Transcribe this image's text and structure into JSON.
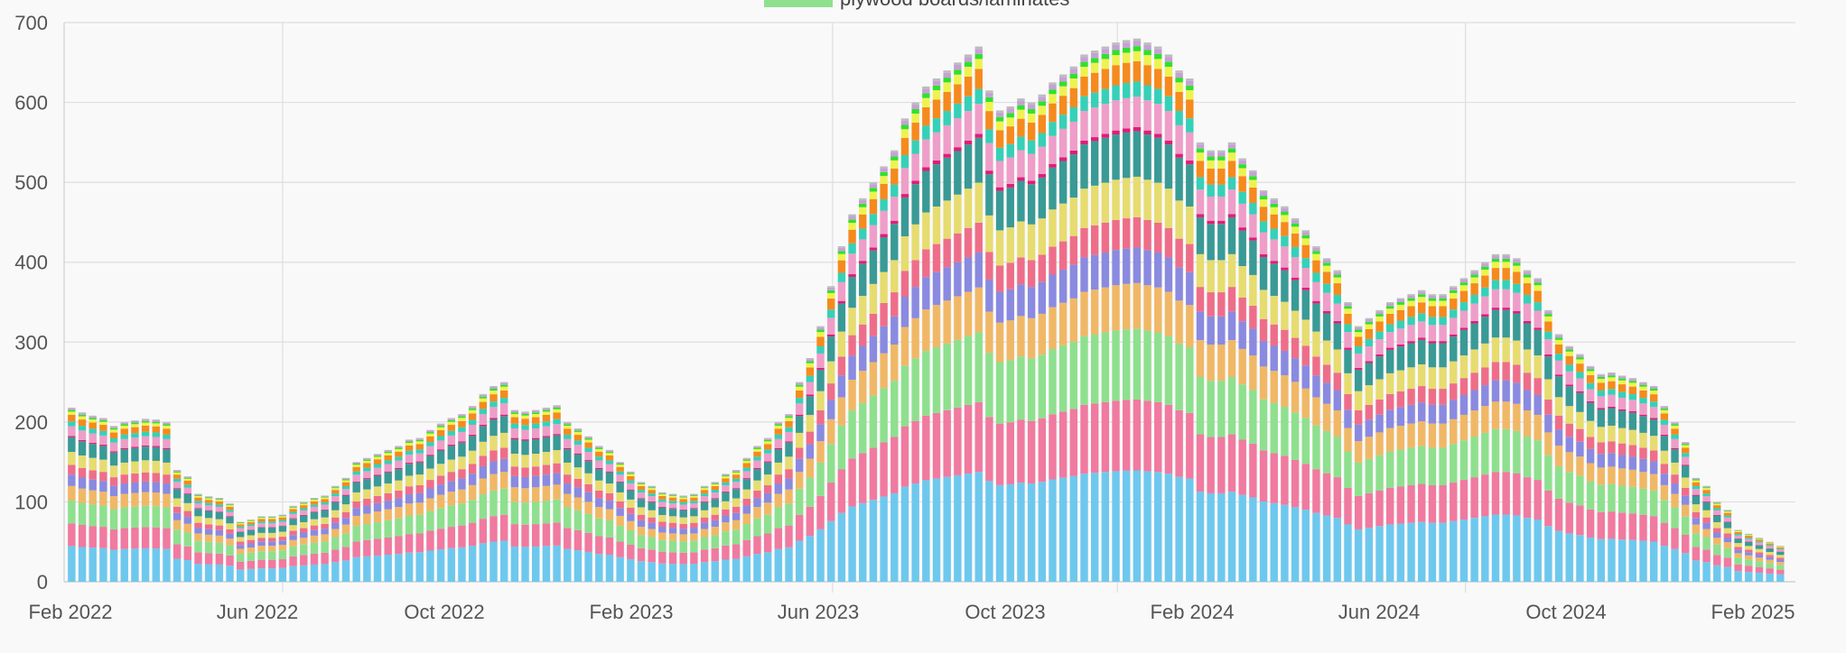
{
  "chart_data": {
    "type": "bar",
    "stacked": true,
    "grid": true,
    "legend": {
      "placement": "top",
      "visible_entries": [
        {
          "label": "plywood boards/laminates",
          "color": "#8ee08e"
        }
      ]
    },
    "ylim": [
      0,
      700
    ],
    "yticks": [
      0,
      100,
      200,
      300,
      400,
      500,
      600,
      700
    ],
    "xtick_labels": [
      "Feb 2022",
      "Jun 2022",
      "Oct 2022",
      "Feb 2023",
      "Jun 2023",
      "Oct 2023",
      "Feb 2024",
      "Jun 2024",
      "Oct 2024",
      "Feb 2025"
    ],
    "series_colors": [
      "#6ec8ee",
      "#f07aa0",
      "#8ee08e",
      "#f0b866",
      "#8a8ae0",
      "#ee6e8a",
      "#e6dc70",
      "#3a9a96",
      "#de1e78",
      "#ee9ec8",
      "#36d0b8",
      "#f58a1e",
      "#eef250",
      "#30e030",
      "#c6a0d6",
      "#bdbdbd"
    ],
    "series_weights": [
      0.22,
      0.14,
      0.14,
      0.09,
      0.07,
      0.06,
      0.08,
      0.09,
      0.008,
      0.06,
      0.03,
      0.04,
      0.02,
      0.01,
      0.01,
      0.005
    ],
    "x": [
      "2022-02-06",
      "2022-02-13",
      "2022-02-20",
      "2022-02-27",
      "2022-03-06",
      "2022-03-13",
      "2022-03-20",
      "2022-03-27",
      "2022-04-03",
      "2022-04-10",
      "2022-04-17",
      "2022-04-24",
      "2022-05-01",
      "2022-05-08",
      "2022-05-15",
      "2022-05-22",
      "2022-05-29",
      "2022-06-05",
      "2022-06-12",
      "2022-06-19",
      "2022-06-26",
      "2022-07-03",
      "2022-07-10",
      "2022-07-17",
      "2022-07-24",
      "2022-07-31",
      "2022-08-07",
      "2022-08-14",
      "2022-08-21",
      "2022-08-28",
      "2022-09-04",
      "2022-09-11",
      "2022-09-18",
      "2022-09-25",
      "2022-10-02",
      "2022-10-09",
      "2022-10-16",
      "2022-10-23",
      "2022-10-30",
      "2022-11-06",
      "2022-11-13",
      "2022-11-20",
      "2022-11-27",
      "2022-12-04",
      "2022-12-11",
      "2022-12-18",
      "2022-12-25",
      "2023-01-01",
      "2023-01-08",
      "2023-01-15",
      "2023-01-22",
      "2023-01-29",
      "2023-02-05",
      "2023-02-12",
      "2023-02-19",
      "2023-02-26",
      "2023-03-05",
      "2023-03-12",
      "2023-03-19",
      "2023-03-26",
      "2023-04-02",
      "2023-04-09",
      "2023-04-16",
      "2023-04-23",
      "2023-04-30",
      "2023-05-07",
      "2023-05-14",
      "2023-05-21",
      "2023-05-28",
      "2023-06-04",
      "2023-06-11",
      "2023-06-18",
      "2023-06-25",
      "2023-07-02",
      "2023-07-09",
      "2023-07-16",
      "2023-07-23",
      "2023-07-30",
      "2023-08-06",
      "2023-08-13",
      "2023-08-20",
      "2023-08-27",
      "2023-09-03",
      "2023-09-10",
      "2023-09-17",
      "2023-09-24",
      "2023-10-01",
      "2023-10-08",
      "2023-10-15",
      "2023-10-22",
      "2023-10-29",
      "2023-11-05",
      "2023-11-12",
      "2023-11-19",
      "2023-11-26",
      "2023-12-03",
      "2023-12-10",
      "2023-12-17",
      "2023-12-24",
      "2023-12-31",
      "2024-01-07",
      "2024-01-14",
      "2024-01-21",
      "2024-01-28",
      "2024-02-04",
      "2024-02-11",
      "2024-02-18",
      "2024-02-25",
      "2024-03-03",
      "2024-03-10",
      "2024-03-17",
      "2024-03-24",
      "2024-03-31",
      "2024-04-07",
      "2024-04-14",
      "2024-04-21",
      "2024-04-28",
      "2024-05-05",
      "2024-05-12",
      "2024-05-19",
      "2024-05-26",
      "2024-06-02",
      "2024-06-09",
      "2024-06-16",
      "2024-06-23",
      "2024-06-30",
      "2024-07-07",
      "2024-07-14",
      "2024-07-21",
      "2024-07-28",
      "2024-08-04",
      "2024-08-11",
      "2024-08-18",
      "2024-08-25",
      "2024-09-01",
      "2024-09-08",
      "2024-09-15",
      "2024-09-22",
      "2024-09-29",
      "2024-10-06",
      "2024-10-13",
      "2024-10-20",
      "2024-10-27",
      "2024-11-03",
      "2024-11-10",
      "2024-11-17",
      "2024-11-24",
      "2024-12-01",
      "2024-12-08",
      "2024-12-15",
      "2024-12-22",
      "2024-12-29",
      "2025-01-05",
      "2025-01-12",
      "2025-01-19",
      "2025-01-26",
      "2025-02-02",
      "2025-02-09",
      "2025-02-16",
      "2025-02-23",
      "2025-03-02",
      "2025-03-09",
      "2025-03-16"
    ],
    "totals": [
      218,
      212,
      208,
      205,
      195,
      200,
      202,
      204,
      203,
      200,
      140,
      132,
      110,
      107,
      105,
      98,
      75,
      78,
      82,
      82,
      84,
      95,
      100,
      105,
      108,
      120,
      130,
      150,
      155,
      160,
      165,
      170,
      178,
      180,
      190,
      198,
      205,
      210,
      220,
      235,
      245,
      250,
      215,
      213,
      215,
      218,
      221,
      200,
      192,
      182,
      170,
      165,
      150,
      138,
      125,
      120,
      112,
      110,
      108,
      110,
      120,
      125,
      135,
      140,
      155,
      170,
      180,
      200,
      210,
      250,
      280,
      320,
      370,
      420,
      460,
      480,
      500,
      520,
      540,
      580,
      600,
      620,
      630,
      640,
      650,
      660,
      670,
      615,
      590,
      595,
      605,
      600,
      610,
      625,
      635,
      645,
      660,
      665,
      670,
      675,
      678,
      680,
      675,
      670,
      660,
      640,
      630,
      550,
      540,
      540,
      550,
      530,
      515,
      490,
      480,
      470,
      455,
      440,
      420,
      405,
      390,
      350,
      320,
      330,
      340,
      350,
      355,
      360,
      365,
      360,
      360,
      370,
      380,
      390,
      400,
      410,
      410,
      405,
      390,
      380,
      340,
      310,
      295,
      285,
      270,
      260,
      262,
      258,
      255,
      250,
      245,
      220,
      200,
      175,
      130,
      120,
      100,
      90,
      65,
      60,
      55,
      50,
      45
    ]
  }
}
